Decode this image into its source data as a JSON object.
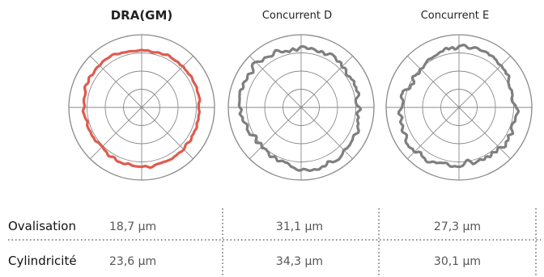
{
  "chart_data": {
    "type": "polar-roundness",
    "charts": [
      {
        "title": "DRA(GM)",
        "color": "#e05a4e",
        "mean_radius": 0.8,
        "amplitude": 0.025,
        "seed": 3
      },
      {
        "title": "Concurrent D",
        "color": "#7f7f7f",
        "mean_radius": 0.82,
        "amplitude": 0.055,
        "seed": 11
      },
      {
        "title": "Concurrent E",
        "color": "#7f7f7f",
        "mean_radius": 0.8,
        "amplitude": 0.06,
        "seed": 23
      }
    ],
    "rings": 4,
    "spokes": 8
  },
  "table": {
    "rows": [
      {
        "label": "Ovalisation",
        "values": [
          "18,7 µm",
          "31,1 µm",
          "27,3 µm"
        ]
      },
      {
        "label": "Cylindricité",
        "values": [
          "23,6 µm",
          "34,3 µm",
          "30,1 µm"
        ]
      }
    ]
  }
}
